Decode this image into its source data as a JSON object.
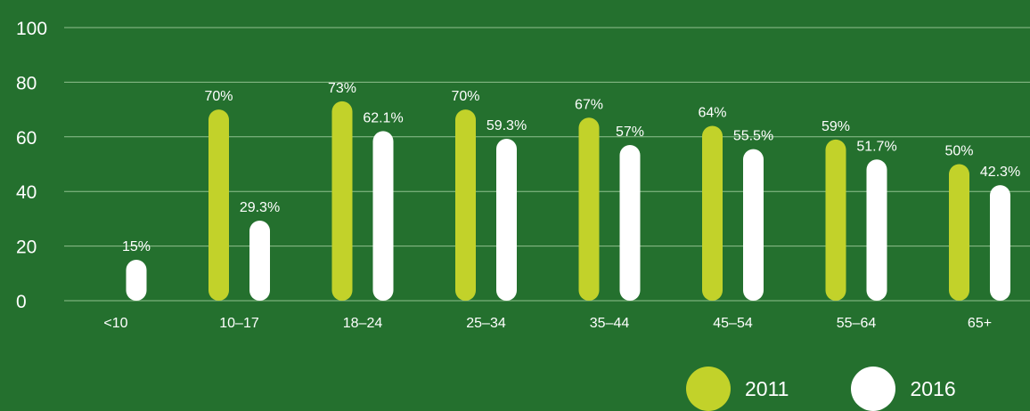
{
  "chart_data": {
    "type": "bar",
    "categories": [
      "<10",
      "10–17",
      "18–24",
      "25–34",
      "35–44",
      "45–54",
      "55–64",
      "65+"
    ],
    "series": [
      {
        "name": "2011",
        "values": [
          null,
          70,
          73,
          70,
          67,
          64,
          59,
          50
        ],
        "labels": [
          "",
          "70%",
          "73%",
          "70%",
          "67%",
          "64%",
          "59%",
          "50%"
        ],
        "color": "#c2d22a"
      },
      {
        "name": "2016",
        "values": [
          15,
          29.3,
          62.1,
          59.3,
          57,
          55.5,
          51.7,
          42.3
        ],
        "labels": [
          "15%",
          "29.3%",
          "62.1%",
          "59.3%",
          "57%",
          "55.5%",
          "51.7%",
          "42.3%"
        ],
        "color": "#ffffff"
      }
    ],
    "yticks": [
      "0",
      "20",
      "40",
      "60",
      "80",
      "100"
    ],
    "ylim": [
      0,
      100
    ],
    "grid": true,
    "legend_position": "bottom-right",
    "colors": {
      "background": "#24702e",
      "grid": "#8fbf8f",
      "text": "#ffffff"
    }
  }
}
